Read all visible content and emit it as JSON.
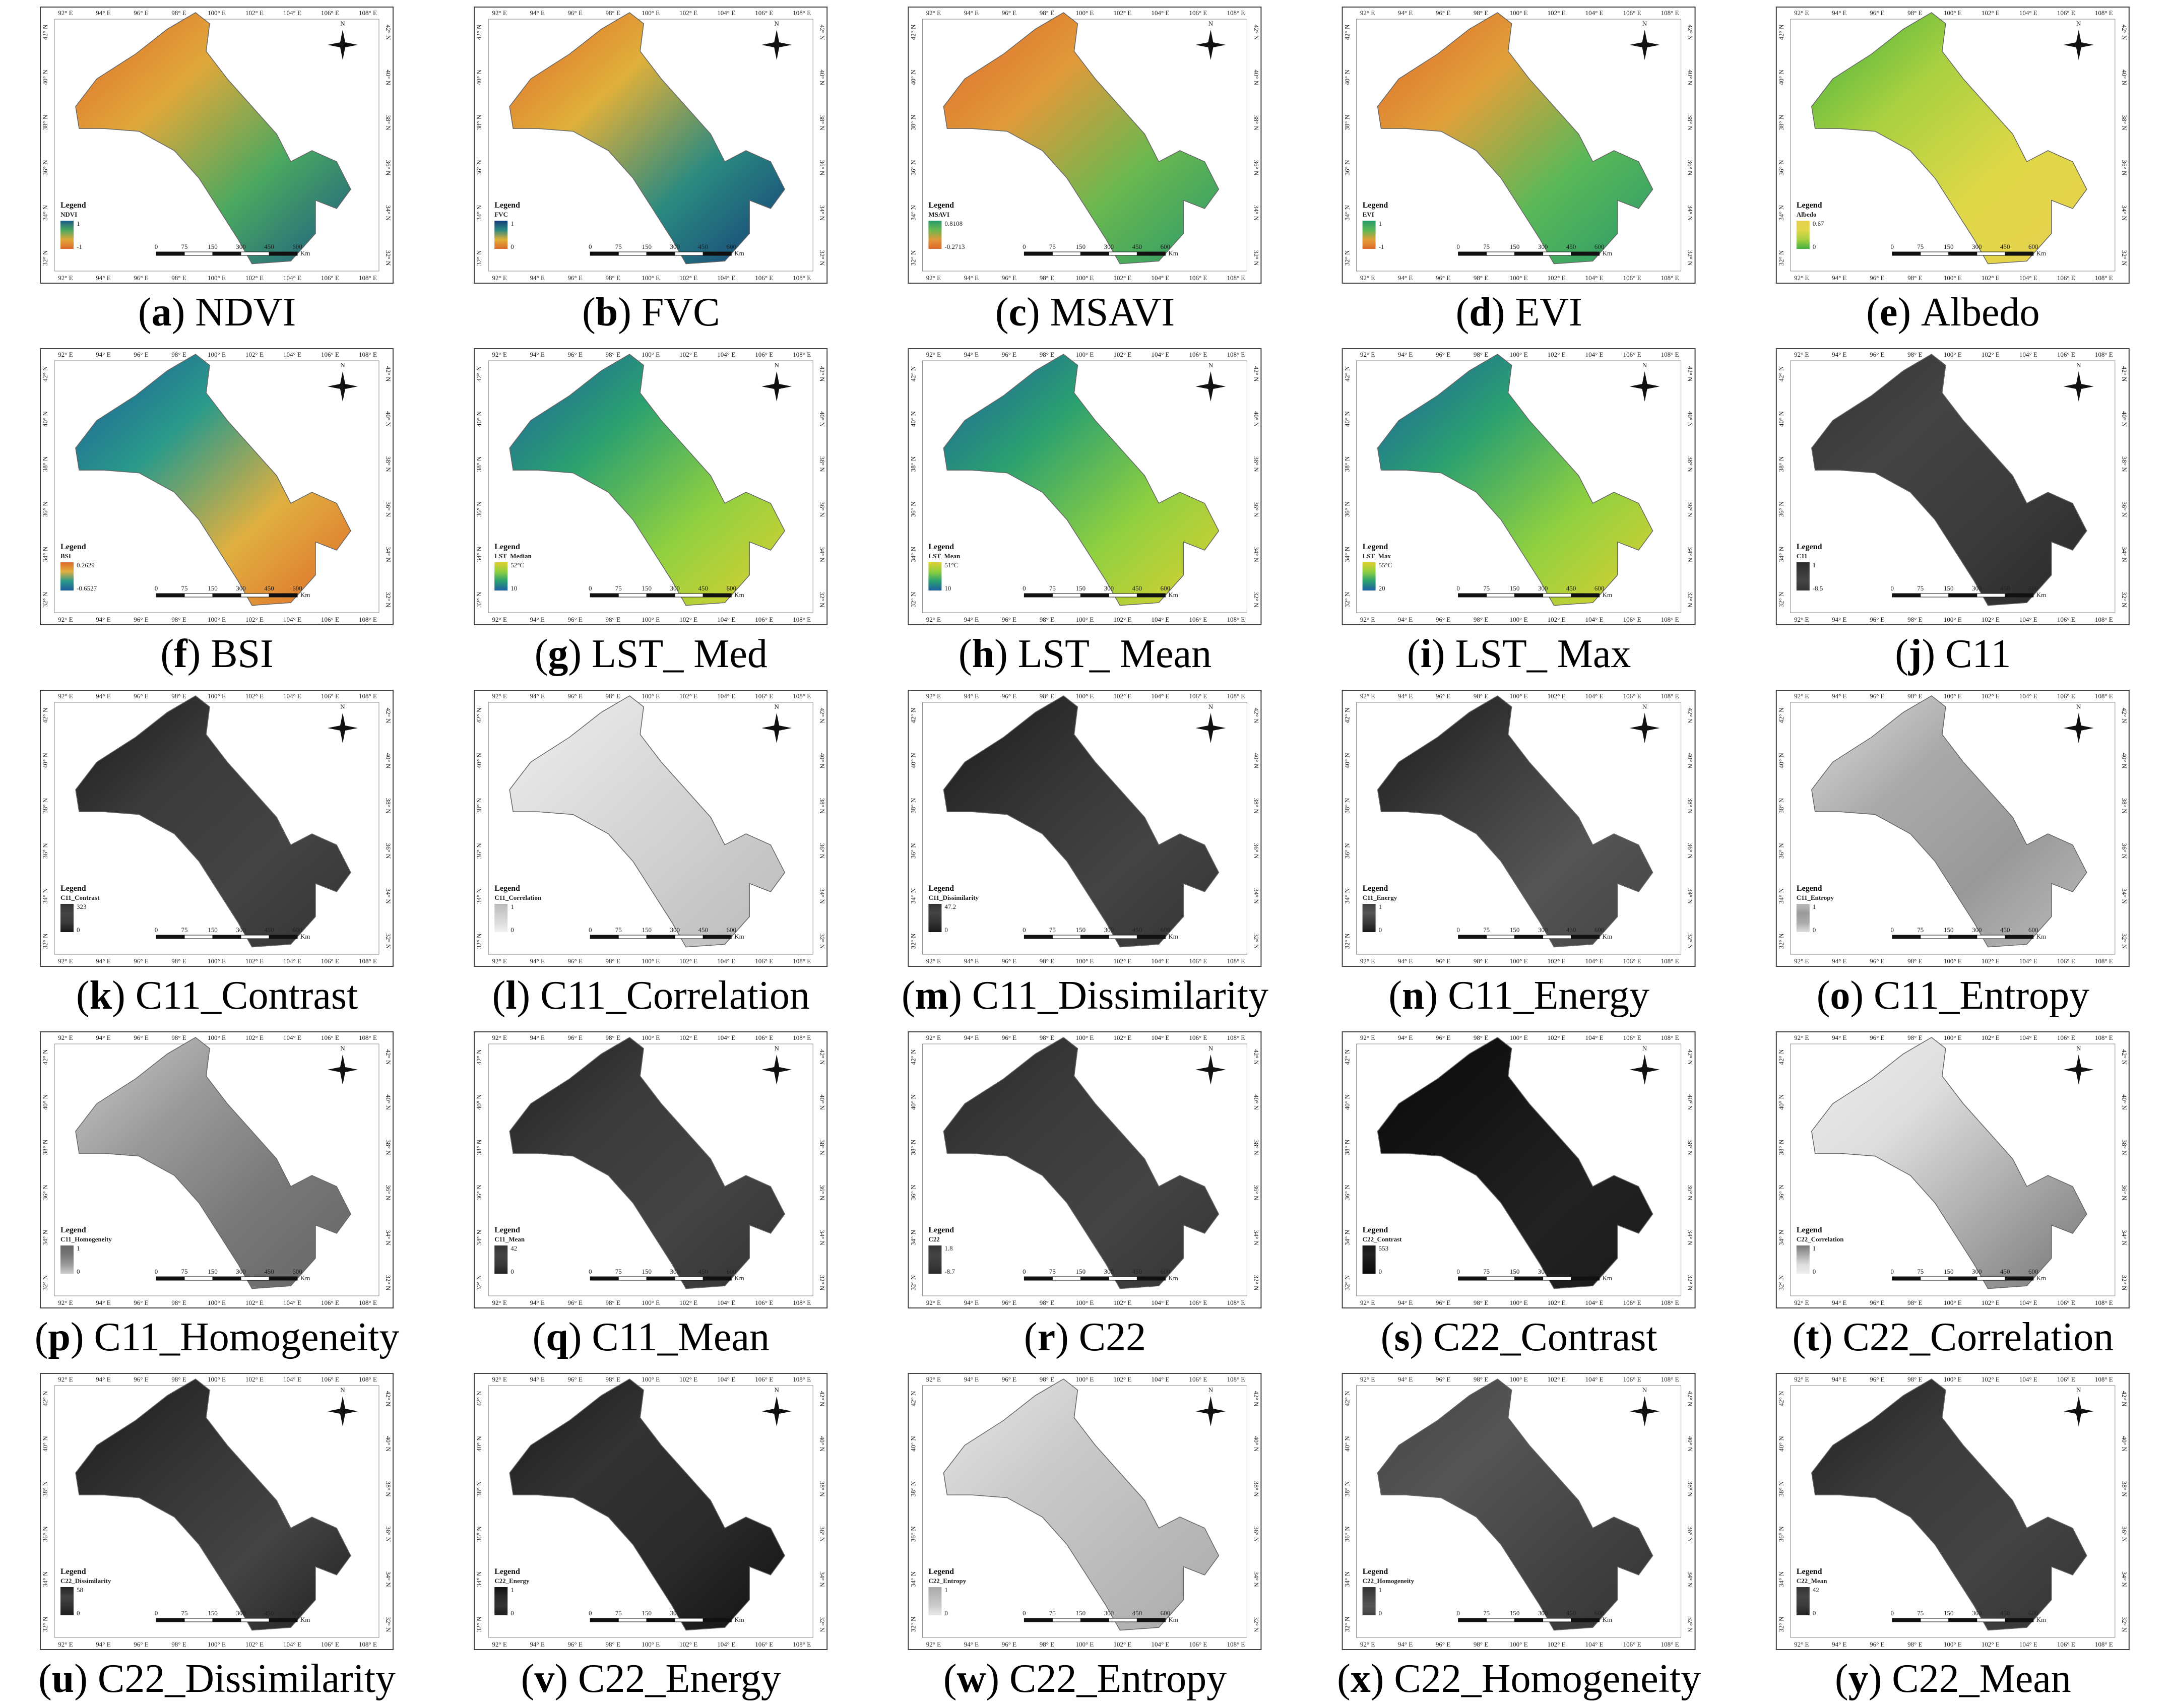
{
  "figure": {
    "lon_labels": [
      "92° E",
      "94° E",
      "96° E",
      "98° E",
      "100° E",
      "102° E",
      "104° E",
      "106° E",
      "108° E"
    ],
    "lat_labels": [
      "42° N",
      "40° N",
      "38° N",
      "36° N",
      "34° N",
      "32° N"
    ],
    "scale_labels": [
      "0",
      "75",
      "150",
      "300",
      "450",
      "600"
    ],
    "scale_unit": "Km",
    "legend_title": "Legend",
    "north": "N",
    "caption_parens": [
      "(",
      ")"
    ],
    "panels": [
      {
        "letter": "a",
        "name": "NDVI",
        "layer": "NDVI",
        "max": "1",
        "min": "-1",
        "colors": [
          "#e0682a",
          "#e0a83a",
          "#4aa860",
          "#1c5a86"
        ]
      },
      {
        "letter": "b",
        "name": "FVC",
        "layer": "FVC",
        "max": "1",
        "min": "0",
        "colors": [
          "#e0682a",
          "#e0b03a",
          "#2a8a80",
          "#163e7a"
        ]
      },
      {
        "letter": "c",
        "name": "MSAVI",
        "layer": "MSAVI",
        "max": "0.8108",
        "min": "-0.2713",
        "colors": [
          "#e0682a",
          "#e09a3a",
          "#6ab850",
          "#2a9a6a"
        ]
      },
      {
        "letter": "d",
        "name": "EVI",
        "layer": "EVI",
        "max": "1",
        "min": "-1",
        "colors": [
          "#e0682a",
          "#e0a03a",
          "#5ab858",
          "#2a9a6a"
        ]
      },
      {
        "letter": "e",
        "name": "Albedo",
        "layer": "Albedo",
        "max": "0.67",
        "min": "0",
        "colors": [
          "#40b040",
          "#a8d040",
          "#e0d848",
          "#e8d050"
        ]
      },
      {
        "letter": "f",
        "name": "BSI",
        "layer": "BSI",
        "max": "0.2629",
        "min": "-0.6527",
        "colors": [
          "#1c5a9a",
          "#2a9a8a",
          "#e0b040",
          "#e06a2a"
        ]
      },
      {
        "letter": "g",
        "name": "LST_ Med",
        "layer": "LST_Median",
        "max": "52°C",
        "min": "10",
        "colors": [
          "#1f5fa0",
          "#2aa070",
          "#8fd040",
          "#e0d030"
        ]
      },
      {
        "letter": "h",
        "name": "LST_ Mean",
        "layer": "LST_Mean",
        "max": "51°C",
        "min": "10",
        "colors": [
          "#1f5fa0",
          "#2aa070",
          "#8fd040",
          "#e0d030"
        ]
      },
      {
        "letter": "i",
        "name": "LST_ Max",
        "layer": "LST_Max",
        "max": "55°C",
        "min": "20",
        "colors": [
          "#1f5fa0",
          "#2aa070",
          "#8fd040",
          "#e0d030"
        ]
      },
      {
        "letter": "j",
        "name": "C11",
        "layer": "C11",
        "max": "1",
        "min": "-8.5",
        "colors": [
          "#333333",
          "#444444",
          "#3a3a3a",
          "#2a2a2a"
        ]
      },
      {
        "letter": "k",
        "name": "C11_Contrast",
        "layer": "C11_Contrast",
        "max": "323",
        "min": "0",
        "colors": [
          "#1a1a1a",
          "#3a3a3a",
          "#444444",
          "#333333"
        ]
      },
      {
        "letter": "l",
        "name": "C11_Correlation",
        "layer": "C11_Correlation",
        "max": "1",
        "min": "0",
        "colors": [
          "#f0f0f0",
          "#dddddd",
          "#cccccc",
          "#bbbbbb"
        ]
      },
      {
        "letter": "m",
        "name": "C11_Dissimilarity",
        "layer": "C11_Dissimilarity",
        "max": "47.2",
        "min": "0",
        "colors": [
          "#1a1a1a",
          "#333333",
          "#444444",
          "#333333"
        ]
      },
      {
        "letter": "n",
        "name": "C11_Energy",
        "layer": "C11_Energy",
        "max": "1",
        "min": "0",
        "colors": [
          "#1a1a1a",
          "#3a3a3a",
          "#555555",
          "#444444"
        ]
      },
      {
        "letter": "o",
        "name": "C11_Entropy",
        "layer": "C11_Entropy",
        "max": "1",
        "min": "0",
        "colors": [
          "#dddddd",
          "#aaaaaa",
          "#999999",
          "#bbbbbb"
        ]
      },
      {
        "letter": "p",
        "name": "C11_Homogeneity",
        "layer": "C11_Homogeneity",
        "max": "1",
        "min": "0",
        "colors": [
          "#cccccc",
          "#999999",
          "#777777",
          "#666666"
        ]
      },
      {
        "letter": "q",
        "name": "C11_Mean",
        "layer": "C11_Mean",
        "max": "42",
        "min": "0",
        "colors": [
          "#222222",
          "#3a3a3a",
          "#444444",
          "#333333"
        ]
      },
      {
        "letter": "r",
        "name": "C22",
        "layer": "C22",
        "max": "1.8",
        "min": "-8.7",
        "colors": [
          "#2a2a2a",
          "#3a3a3a",
          "#444444",
          "#333333"
        ]
      },
      {
        "letter": "s",
        "name": "C22_Contrast",
        "layer": "C22_Contrast",
        "max": "553",
        "min": "0",
        "colors": [
          "#0a0a0a",
          "#151515",
          "#222222",
          "#1a1a1a"
        ]
      },
      {
        "letter": "t",
        "name": "C22_Correlation",
        "layer": "C22_Correlation",
        "max": "1",
        "min": "0",
        "colors": [
          "#eeeeee",
          "#dddddd",
          "#aaaaaa",
          "#777777"
        ]
      },
      {
        "letter": "u",
        "name": "C22_Dissimilarity",
        "layer": "C22_Dissimilarity",
        "max": "58",
        "min": "0",
        "colors": [
          "#1a1a1a",
          "#333333",
          "#444444",
          "#222222"
        ]
      },
      {
        "letter": "v",
        "name": "C22_Energy",
        "layer": "C22_Energy",
        "max": "1",
        "min": "0",
        "colors": [
          "#1a1a1a",
          "#333333",
          "#2a2a2a",
          "#111111"
        ]
      },
      {
        "letter": "w",
        "name": "C22_Entropy",
        "layer": "C22_Entropy",
        "max": "1",
        "min": "0",
        "colors": [
          "#e8e8e8",
          "#cccccc",
          "#bbbbbb",
          "#aaaaaa"
        ]
      },
      {
        "letter": "x",
        "name": "C22_Homogeneity",
        "layer": "C22_Homogeneity",
        "max": "1",
        "min": "0",
        "colors": [
          "#444444",
          "#555555",
          "#444444",
          "#333333"
        ]
      },
      {
        "letter": "y",
        "name": "C22_Mean",
        "layer": "C22_Mean",
        "max": "42",
        "min": "0",
        "colors": [
          "#222222",
          "#3a3a3a",
          "#444444",
          "#333333"
        ]
      }
    ]
  }
}
